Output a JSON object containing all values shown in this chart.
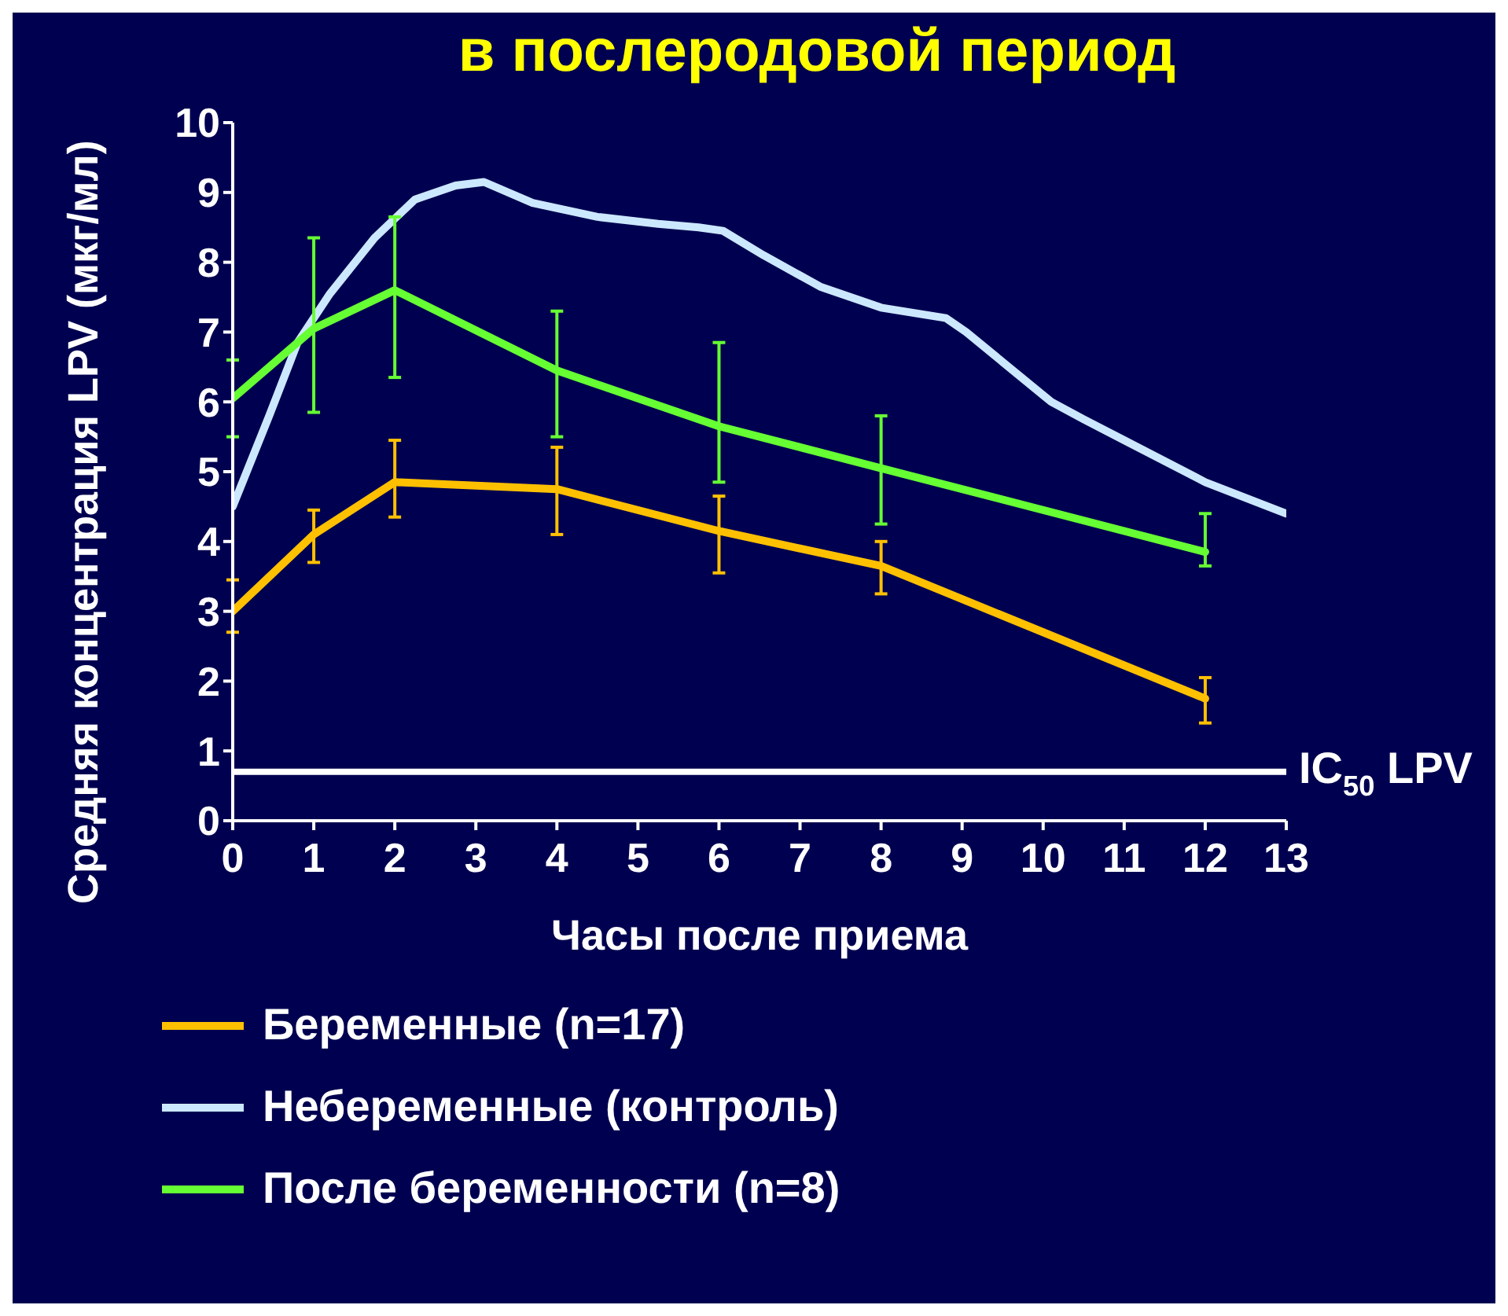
{
  "chart_data": {
    "type": "line",
    "title": "в послеродовой период",
    "xlabel": "Часы после приема",
    "ylabel": "Средняя концентрация LPV (мкг/мл)",
    "xlim": [
      0,
      13
    ],
    "xticks": [
      0,
      1,
      2,
      3,
      4,
      5,
      6,
      7,
      8,
      9,
      10,
      11,
      12,
      13
    ],
    "ylim": [
      0,
      10
    ],
    "yticks": [
      0,
      1,
      2,
      3,
      4,
      5,
      6,
      7,
      8,
      9,
      10
    ],
    "series": [
      {
        "name": "Беременные (n=17)",
        "color": "#ffc000",
        "x": [
          0,
          1,
          2,
          4,
          6,
          8,
          12
        ],
        "values": [
          3.0,
          4.1,
          4.85,
          4.75,
          4.15,
          3.65,
          1.75
        ],
        "errors": [
          [
            2.7,
            3.45
          ],
          [
            3.7,
            4.45
          ],
          [
            4.35,
            5.45
          ],
          [
            4.1,
            5.35
          ],
          [
            3.55,
            4.65
          ],
          [
            3.25,
            4.0
          ],
          [
            1.4,
            2.05
          ]
        ]
      },
      {
        "name": "Небеременные (контроль)",
        "color": "#cce8ff",
        "x": [
          0,
          0.45,
          0.8,
          1.2,
          1.75,
          2.25,
          2.75,
          3.1,
          3.7,
          4.5,
          5.25,
          5.75,
          6.05,
          6.55,
          7.25,
          8.0,
          8.8,
          9.05,
          10.1,
          10.5,
          11.0,
          12.0,
          13.0
        ],
        "values": [
          4.5,
          5.8,
          6.85,
          7.55,
          8.35,
          8.9,
          9.1,
          9.15,
          8.85,
          8.65,
          8.55,
          8.5,
          8.45,
          8.1,
          7.65,
          7.35,
          7.2,
          7.0,
          6.0,
          5.75,
          5.45,
          4.85,
          4.4
        ]
      },
      {
        "name": "После беременности (n=8)",
        "color": "#66ff33",
        "x": [
          0,
          1,
          2,
          4,
          6,
          8,
          12
        ],
        "values": [
          6.05,
          7.05,
          7.6,
          6.45,
          5.65,
          5.05,
          3.85
        ],
        "errors": [
          [
            5.5,
            6.6
          ],
          [
            5.85,
            8.35
          ],
          [
            6.35,
            8.65
          ],
          [
            5.5,
            7.3
          ],
          [
            4.85,
            6.85
          ],
          [
            4.25,
            5.8
          ],
          [
            3.65,
            4.4
          ]
        ]
      }
    ],
    "ref_lines": [
      {
        "axis": "y",
        "value": 0.7,
        "label": "IC$_{50}$ LPV",
        "color": "#ffffff"
      }
    ],
    "legend": "bottom",
    "grid": false,
    "marker": "none"
  }
}
